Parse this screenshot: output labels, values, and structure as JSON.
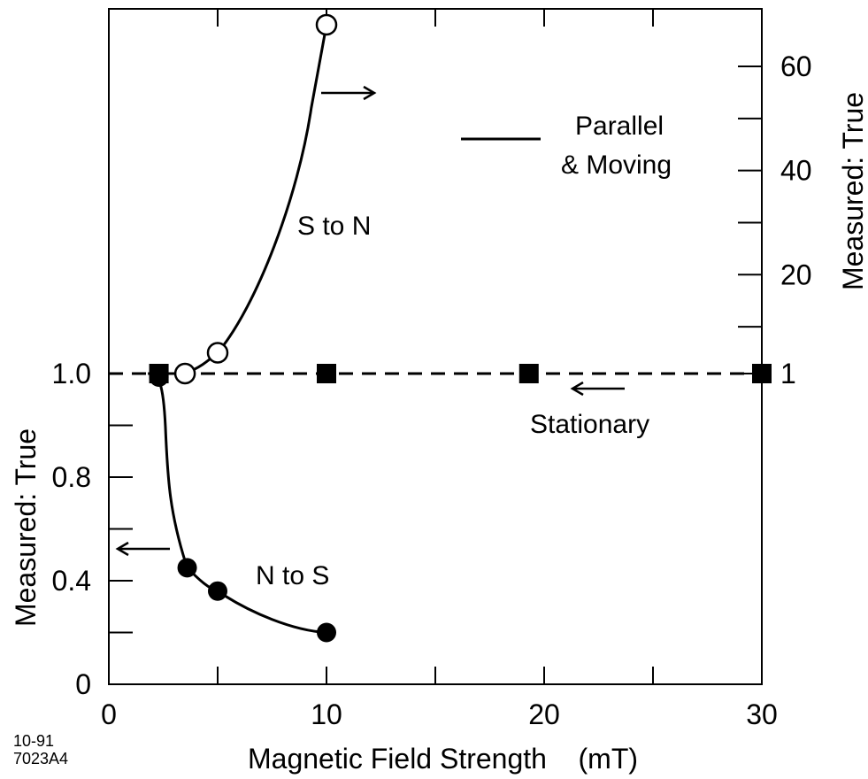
{
  "chart_data": {
    "type": "line",
    "xlabel": "Magnetic Field Strength    (mT)",
    "ylabel_left": "Measured: True",
    "ylabel_right": "Measured: True",
    "xlim": [
      0,
      30
    ],
    "x_ticks": [
      "0",
      "10",
      "20",
      "30"
    ],
    "left_ticks": [
      "0",
      "0.4",
      "0.8",
      "1.0"
    ],
    "right_ticks": [
      "1",
      "20",
      "40",
      "60"
    ],
    "corner_note": [
      "10-91",
      "7023A4"
    ],
    "series": [
      {
        "name": "S to N",
        "axis": "right",
        "marker": "open-circle",
        "line": "solid",
        "x": [
          3.5,
          5.0,
          10.0
        ],
        "y": [
          1.0,
          5.0,
          68.0
        ]
      },
      {
        "name": "N to S",
        "axis": "left",
        "marker": "filled-circle",
        "line": "solid",
        "x": [
          2.3,
          3.6,
          5.0,
          10.0
        ],
        "y": [
          0.99,
          0.45,
          0.36,
          0.2
        ]
      },
      {
        "name": "Stationary",
        "axis": "both",
        "marker": "filled-square",
        "line": "dashed",
        "x": [
          2.3,
          10.0,
          19.3,
          30.0
        ],
        "y": [
          1.0,
          1.0,
          1.0,
          1.0
        ]
      }
    ],
    "legend": {
      "label": "Parallel & Moving",
      "label_lines": [
        "Parallel",
        "& Moving"
      ],
      "placement": "top-right"
    },
    "annotations": {
      "s_to_n": "S to N",
      "n_to_s": "N to S",
      "stationary": "Stationary"
    }
  }
}
